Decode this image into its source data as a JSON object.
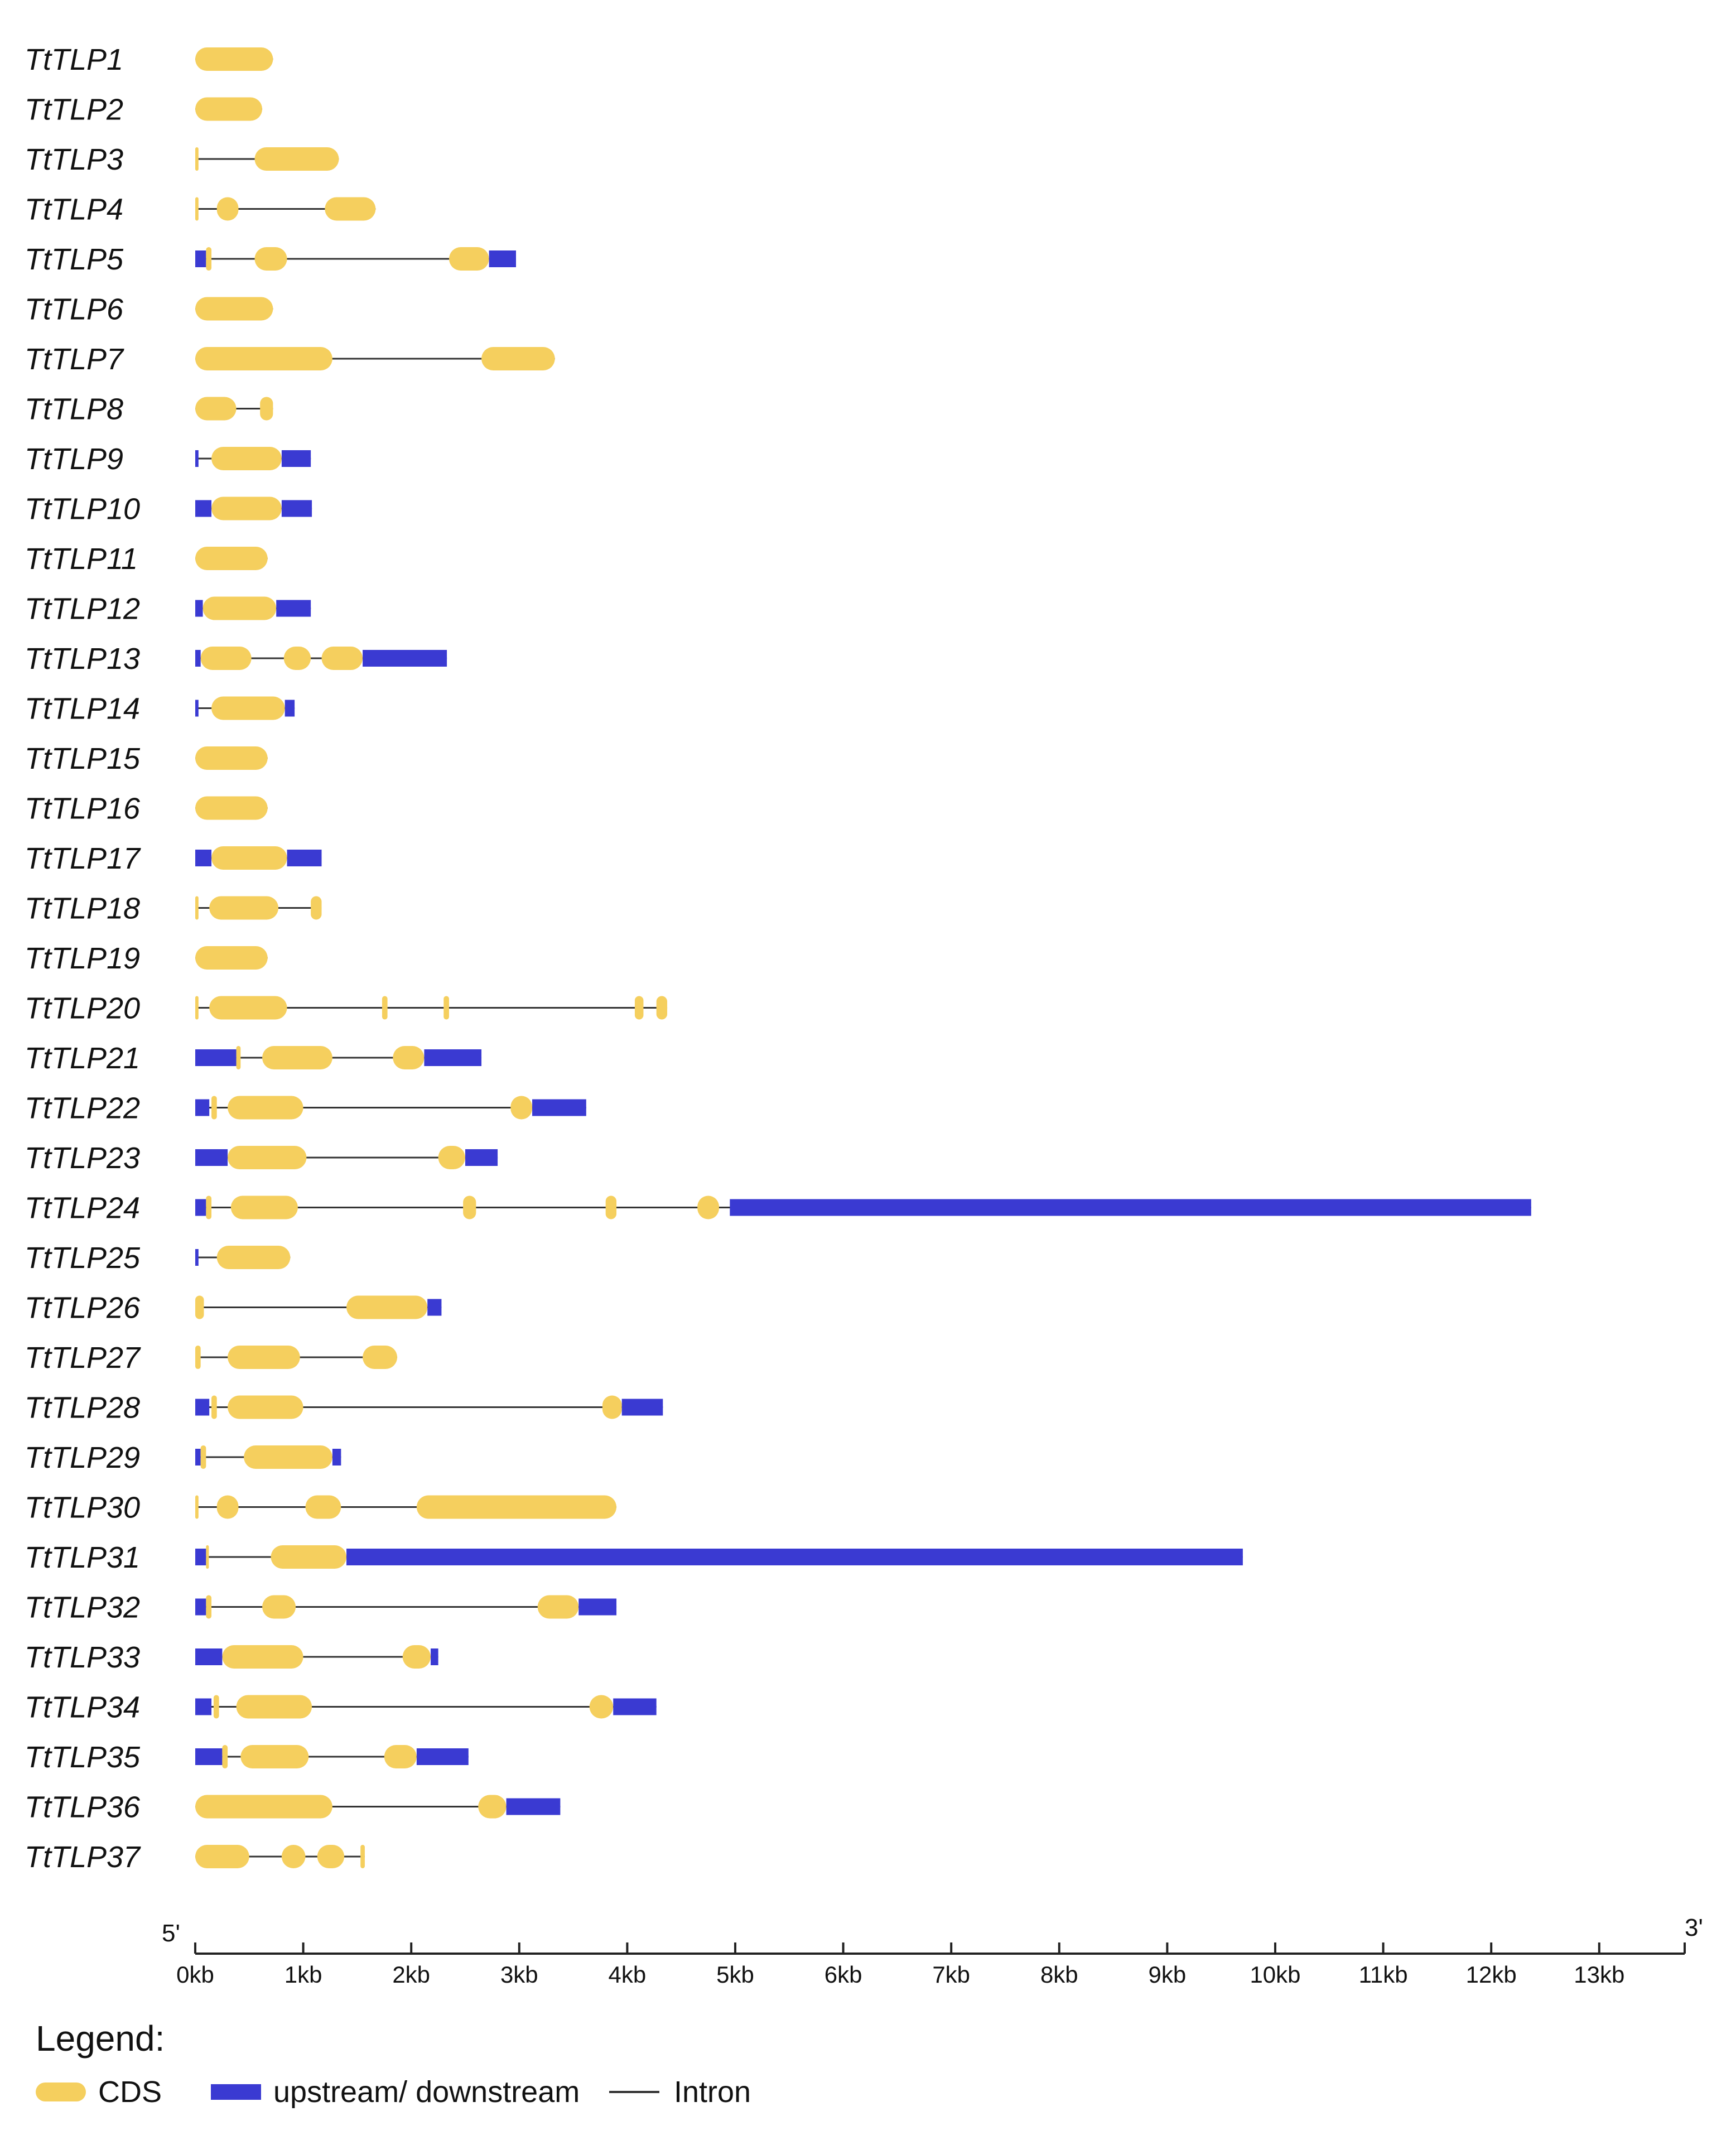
{
  "colors": {
    "cds": "#F5CF5E",
    "utr": "#3A3AD2",
    "intron": "#333333",
    "axis": "#222222"
  },
  "axis": {
    "start_label": "5'",
    "end_label": "3'",
    "ticks": [
      "0kb",
      "1kb",
      "2kb",
      "3kb",
      "4kb",
      "5kb",
      "6kb",
      "7kb",
      "8kb",
      "9kb",
      "10kb",
      "11kb",
      "12kb",
      "13kb"
    ]
  },
  "legend": {
    "title": "Legend:",
    "items": [
      {
        "type": "cds",
        "label": "CDS"
      },
      {
        "type": "utr",
        "label": "upstream/ downstream"
      },
      {
        "type": "intron",
        "label": "Intron"
      }
    ]
  },
  "genes": [
    {
      "name": "TtTLP1",
      "span": [
        0.0,
        0.72
      ],
      "features": [
        [
          "cds",
          0.0,
          0.72
        ]
      ]
    },
    {
      "name": "TtTLP2",
      "span": [
        0.0,
        0.62
      ],
      "features": [
        [
          "cds",
          0.0,
          0.62
        ]
      ]
    },
    {
      "name": "TtTLP3",
      "span": [
        0.0,
        1.33
      ],
      "features": [
        [
          "cds",
          0.0,
          0.03
        ],
        [
          "cds",
          0.55,
          1.33
        ]
      ]
    },
    {
      "name": "TtTLP4",
      "span": [
        0.0,
        1.67
      ],
      "features": [
        [
          "cds",
          0.0,
          0.03
        ],
        [
          "cds",
          0.2,
          0.4
        ],
        [
          "cds",
          1.2,
          1.67
        ]
      ]
    },
    {
      "name": "TtTLP5",
      "span": [
        0.0,
        2.97
      ],
      "features": [
        [
          "utr",
          0.0,
          0.1
        ],
        [
          "cds",
          0.1,
          0.15
        ],
        [
          "cds",
          0.55,
          0.85
        ],
        [
          "cds",
          2.35,
          2.72
        ],
        [
          "utr",
          2.72,
          2.97
        ]
      ]
    },
    {
      "name": "TtTLP6",
      "span": [
        0.0,
        0.72
      ],
      "features": [
        [
          "cds",
          0.0,
          0.72
        ]
      ]
    },
    {
      "name": "TtTLP7",
      "span": [
        0.0,
        3.33
      ],
      "features": [
        [
          "cds",
          0.0,
          1.27
        ],
        [
          "cds",
          2.65,
          3.33
        ]
      ]
    },
    {
      "name": "TtTLP8",
      "span": [
        0.0,
        0.72
      ],
      "features": [
        [
          "cds",
          0.0,
          0.38
        ],
        [
          "cds",
          0.6,
          0.72
        ]
      ]
    },
    {
      "name": "TtTLP9",
      "span": [
        0.0,
        1.07
      ],
      "features": [
        [
          "utr",
          0.0,
          0.03
        ],
        [
          "cds",
          0.15,
          0.8
        ],
        [
          "utr",
          0.8,
          1.07
        ]
      ]
    },
    {
      "name": "TtTLP10",
      "span": [
        0.0,
        1.08
      ],
      "features": [
        [
          "utr",
          0.0,
          0.15
        ],
        [
          "cds",
          0.15,
          0.8
        ],
        [
          "utr",
          0.8,
          1.08
        ]
      ]
    },
    {
      "name": "TtTLP11",
      "span": [
        0.0,
        0.67
      ],
      "features": [
        [
          "cds",
          0.0,
          0.67
        ]
      ]
    },
    {
      "name": "TtTLP12",
      "span": [
        0.0,
        1.07
      ],
      "features": [
        [
          "utr",
          0.0,
          0.07
        ],
        [
          "cds",
          0.07,
          0.75
        ],
        [
          "utr",
          0.75,
          1.07
        ]
      ]
    },
    {
      "name": "TtTLP13",
      "span": [
        0.0,
        2.33
      ],
      "features": [
        [
          "utr",
          0.0,
          0.05
        ],
        [
          "cds",
          0.05,
          0.52
        ],
        [
          "cds",
          0.82,
          1.07
        ],
        [
          "cds",
          1.17,
          1.55
        ],
        [
          "utr",
          1.55,
          2.33
        ]
      ]
    },
    {
      "name": "TtTLP14",
      "span": [
        0.0,
        0.92
      ],
      "features": [
        [
          "utr",
          0.0,
          0.03
        ],
        [
          "cds",
          0.15,
          0.83
        ],
        [
          "utr",
          0.83,
          0.92
        ]
      ]
    },
    {
      "name": "TtTLP15",
      "span": [
        0.0,
        0.67
      ],
      "features": [
        [
          "cds",
          0.0,
          0.67
        ]
      ]
    },
    {
      "name": "TtTLP16",
      "span": [
        0.0,
        0.67
      ],
      "features": [
        [
          "cds",
          0.0,
          0.67
        ]
      ]
    },
    {
      "name": "TtTLP17",
      "span": [
        0.0,
        1.17
      ],
      "features": [
        [
          "utr",
          0.0,
          0.15
        ],
        [
          "cds",
          0.15,
          0.85
        ],
        [
          "utr",
          0.85,
          1.17
        ]
      ]
    },
    {
      "name": "TtTLP18",
      "span": [
        0.0,
        1.17
      ],
      "features": [
        [
          "cds",
          0.0,
          0.03
        ],
        [
          "cds",
          0.13,
          0.77
        ],
        [
          "cds",
          1.07,
          1.17
        ]
      ]
    },
    {
      "name": "TtTLP19",
      "span": [
        0.0,
        0.67
      ],
      "features": [
        [
          "cds",
          0.0,
          0.67
        ]
      ]
    },
    {
      "name": "TtTLP20",
      "span": [
        0.0,
        4.37
      ],
      "features": [
        [
          "cds",
          0.0,
          0.03
        ],
        [
          "cds",
          0.13,
          0.85
        ],
        [
          "cds",
          1.73,
          1.78
        ],
        [
          "cds",
          2.3,
          2.35
        ],
        [
          "cds",
          4.07,
          4.15
        ],
        [
          "cds",
          4.27,
          4.37
        ]
      ]
    },
    {
      "name": "TtTLP21",
      "span": [
        0.0,
        2.65
      ],
      "features": [
        [
          "utr",
          0.0,
          0.38
        ],
        [
          "cds",
          0.38,
          0.42
        ],
        [
          "cds",
          0.62,
          1.27
        ],
        [
          "cds",
          1.83,
          2.12
        ],
        [
          "utr",
          2.12,
          2.65
        ]
      ]
    },
    {
      "name": "TtTLP22",
      "span": [
        0.0,
        3.62
      ],
      "features": [
        [
          "utr",
          0.0,
          0.13
        ],
        [
          "cds",
          0.15,
          0.2
        ],
        [
          "cds",
          0.3,
          1.0
        ],
        [
          "cds",
          2.92,
          3.12
        ],
        [
          "utr",
          3.12,
          3.62
        ]
      ]
    },
    {
      "name": "TtTLP23",
      "span": [
        0.0,
        2.8
      ],
      "features": [
        [
          "utr",
          0.0,
          0.3
        ],
        [
          "cds",
          0.3,
          1.03
        ],
        [
          "cds",
          2.25,
          2.5
        ],
        [
          "utr",
          2.5,
          2.8
        ]
      ]
    },
    {
      "name": "TtTLP24",
      "span": [
        0.0,
        12.37
      ],
      "features": [
        [
          "utr",
          0.0,
          0.1
        ],
        [
          "cds",
          0.1,
          0.15
        ],
        [
          "cds",
          0.33,
          0.95
        ],
        [
          "cds",
          2.48,
          2.6
        ],
        [
          "cds",
          3.8,
          3.9
        ],
        [
          "cds",
          4.65,
          4.85
        ],
        [
          "utr",
          4.95,
          12.37
        ]
      ]
    },
    {
      "name": "TtTLP25",
      "span": [
        0.0,
        0.88
      ],
      "features": [
        [
          "utr",
          0.0,
          0.03
        ],
        [
          "cds",
          0.2,
          0.88
        ]
      ]
    },
    {
      "name": "TtTLP26",
      "span": [
        0.0,
        2.28
      ],
      "features": [
        [
          "cds",
          0.0,
          0.08
        ],
        [
          "cds",
          1.4,
          2.15
        ],
        [
          "utr",
          2.15,
          2.28
        ]
      ]
    },
    {
      "name": "TtTLP27",
      "span": [
        0.0,
        1.87
      ],
      "features": [
        [
          "cds",
          0.0,
          0.05
        ],
        [
          "cds",
          0.3,
          0.97
        ],
        [
          "cds",
          1.55,
          1.87
        ]
      ]
    },
    {
      "name": "TtTLP28",
      "span": [
        0.0,
        4.33
      ],
      "features": [
        [
          "utr",
          0.0,
          0.13
        ],
        [
          "cds",
          0.15,
          0.2
        ],
        [
          "cds",
          0.3,
          1.0
        ],
        [
          "cds",
          3.77,
          3.95
        ],
        [
          "utr",
          3.95,
          4.33
        ]
      ]
    },
    {
      "name": "TtTLP29",
      "span": [
        0.0,
        1.35
      ],
      "features": [
        [
          "utr",
          0.0,
          0.05
        ],
        [
          "cds",
          0.05,
          0.1
        ],
        [
          "cds",
          0.45,
          1.27
        ],
        [
          "utr",
          1.27,
          1.35
        ]
      ]
    },
    {
      "name": "TtTLP30",
      "span": [
        0.0,
        3.9
      ],
      "features": [
        [
          "cds",
          0.0,
          0.03
        ],
        [
          "cds",
          0.2,
          0.4
        ],
        [
          "cds",
          1.02,
          1.35
        ],
        [
          "cds",
          2.05,
          3.9
        ]
      ]
    },
    {
      "name": "TtTLP31",
      "span": [
        0.0,
        9.7
      ],
      "features": [
        [
          "utr",
          0.0,
          0.1
        ],
        [
          "cds",
          0.1,
          0.12
        ],
        [
          "cds",
          0.7,
          1.4
        ],
        [
          "utr",
          1.4,
          9.7
        ]
      ]
    },
    {
      "name": "TtTLP32",
      "span": [
        0.0,
        3.9
      ],
      "features": [
        [
          "utr",
          0.0,
          0.1
        ],
        [
          "cds",
          0.1,
          0.15
        ],
        [
          "cds",
          0.62,
          0.93
        ],
        [
          "cds",
          3.17,
          3.55
        ],
        [
          "utr",
          3.55,
          3.9
        ]
      ]
    },
    {
      "name": "TtTLP33",
      "span": [
        0.0,
        2.25
      ],
      "features": [
        [
          "utr",
          0.0,
          0.25
        ],
        [
          "cds",
          0.25,
          1.0
        ],
        [
          "cds",
          1.92,
          2.18
        ],
        [
          "utr",
          2.18,
          2.25
        ]
      ]
    },
    {
      "name": "TtTLP34",
      "span": [
        0.0,
        4.27
      ],
      "features": [
        [
          "utr",
          0.0,
          0.15
        ],
        [
          "cds",
          0.17,
          0.22
        ],
        [
          "cds",
          0.38,
          1.08
        ],
        [
          "cds",
          3.65,
          3.87
        ],
        [
          "utr",
          3.87,
          4.27
        ]
      ]
    },
    {
      "name": "TtTLP35",
      "span": [
        0.0,
        2.53
      ],
      "features": [
        [
          "utr",
          0.0,
          0.25
        ],
        [
          "cds",
          0.25,
          0.3
        ],
        [
          "cds",
          0.42,
          1.05
        ],
        [
          "cds",
          1.75,
          2.05
        ],
        [
          "utr",
          2.05,
          2.53
        ]
      ]
    },
    {
      "name": "TtTLP36",
      "span": [
        0.0,
        3.38
      ],
      "features": [
        [
          "cds",
          0.0,
          1.27
        ],
        [
          "cds",
          2.62,
          2.88
        ],
        [
          "utr",
          2.88,
          3.38
        ]
      ]
    },
    {
      "name": "TtTLP37",
      "span": [
        0.0,
        1.57
      ],
      "features": [
        [
          "cds",
          0.0,
          0.5
        ],
        [
          "cds",
          0.8,
          1.02
        ],
        [
          "cds",
          1.13,
          1.38
        ],
        [
          "cds",
          1.53,
          1.57
        ]
      ]
    }
  ]
}
